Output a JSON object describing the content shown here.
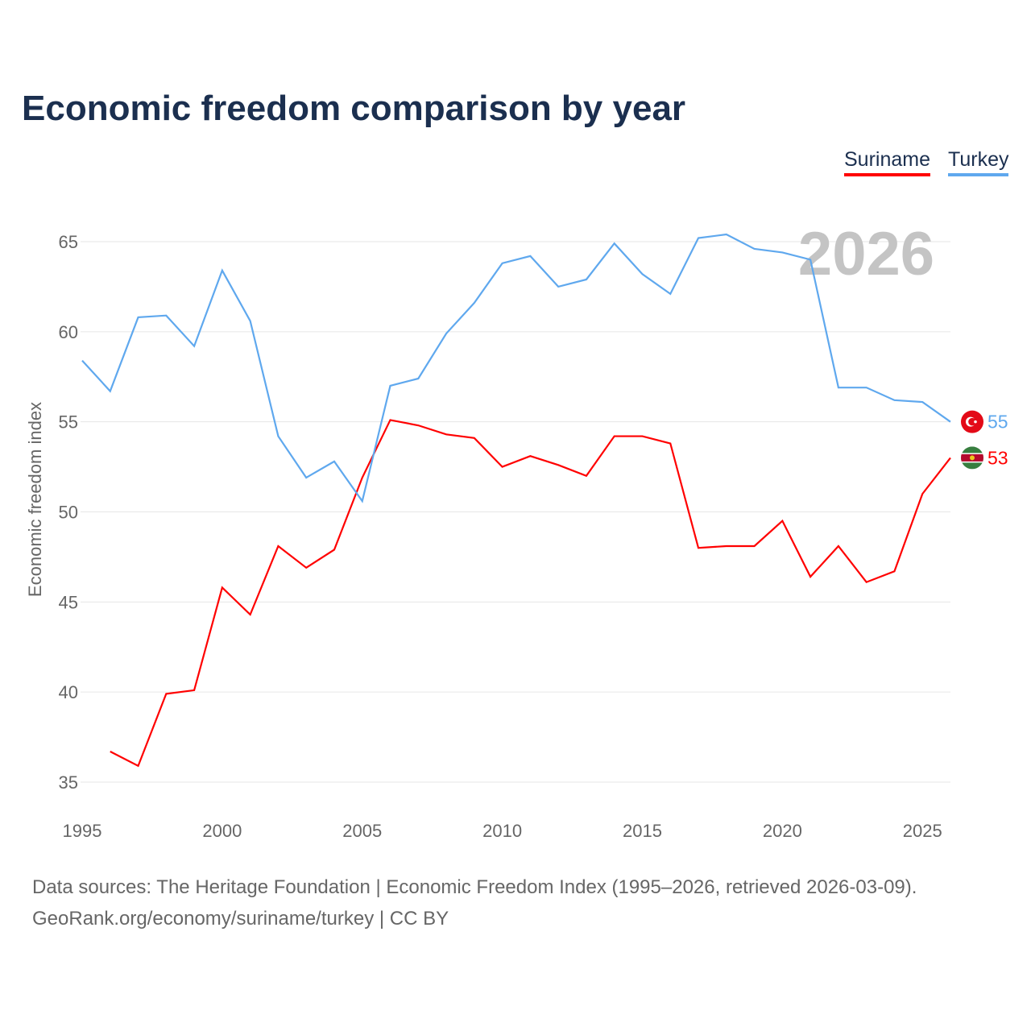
{
  "chart_data": {
    "type": "line",
    "title": "Economic freedom comparison by year",
    "xlabel": "",
    "ylabel": "Economic freedom index",
    "xlim": [
      1995,
      2026
    ],
    "ylim": [
      35,
      65
    ],
    "xticks": [
      1995,
      2000,
      2005,
      2010,
      2015,
      2020,
      2025
    ],
    "yticks": [
      35,
      40,
      45,
      50,
      55,
      60,
      65
    ],
    "grid": true,
    "legend_position": "top-right",
    "watermark_year": "2026",
    "series": [
      {
        "name": "Suriname",
        "color": "#ff0000",
        "end_label": "53",
        "x": [
          1996,
          1997,
          1998,
          1999,
          2000,
          2001,
          2002,
          2003,
          2004,
          2005,
          2006,
          2007,
          2008,
          2009,
          2010,
          2011,
          2012,
          2013,
          2014,
          2015,
          2016,
          2017,
          2018,
          2019,
          2020,
          2021,
          2022,
          2023,
          2024,
          2025,
          2026
        ],
        "values": [
          36.7,
          35.9,
          39.9,
          40.1,
          45.8,
          44.3,
          48.1,
          46.9,
          47.9,
          51.9,
          55.1,
          54.8,
          54.3,
          54.1,
          52.5,
          53.1,
          52.6,
          52.0,
          54.2,
          54.2,
          53.8,
          48.0,
          48.1,
          48.1,
          49.5,
          46.4,
          48.1,
          46.1,
          46.7,
          51.0,
          53.0
        ]
      },
      {
        "name": "Turkey",
        "color": "#5fa8ee",
        "end_label": "55",
        "x": [
          1995,
          1996,
          1997,
          1998,
          1999,
          2000,
          2001,
          2002,
          2003,
          2004,
          2005,
          2006,
          2007,
          2008,
          2009,
          2010,
          2011,
          2012,
          2013,
          2014,
          2015,
          2016,
          2017,
          2018,
          2019,
          2020,
          2021,
          2022,
          2023,
          2024,
          2025,
          2026
        ],
        "values": [
          58.4,
          56.7,
          60.8,
          60.9,
          59.2,
          63.4,
          60.6,
          54.2,
          51.9,
          52.8,
          50.6,
          57.0,
          57.4,
          59.9,
          61.6,
          63.8,
          64.2,
          62.5,
          62.9,
          64.9,
          63.2,
          62.1,
          65.2,
          65.4,
          64.6,
          64.4,
          64.0,
          56.9,
          56.9,
          56.2,
          56.1,
          55.0
        ]
      }
    ]
  },
  "footer": {
    "line1": "Data sources: The Heritage Foundation | Economic Freedom Index (1995–2026, retrieved 2026-03-09).",
    "line2": "GeoRank.org/economy/suriname/turkey | CC BY"
  }
}
